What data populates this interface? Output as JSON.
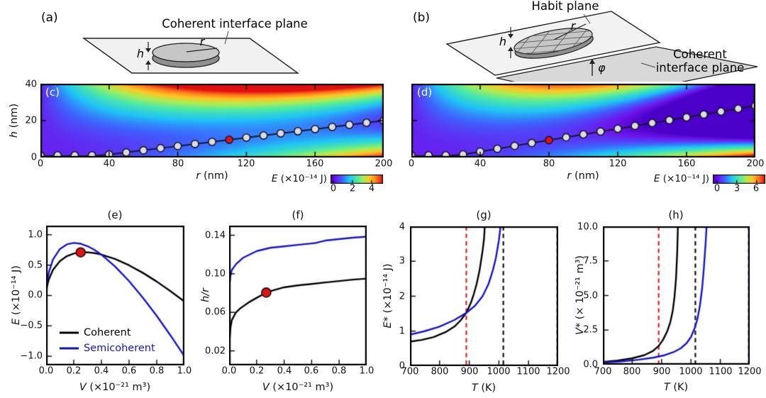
{
  "schematics": {
    "a": {
      "panel_label": "(a)",
      "plane_label": "Coherent interface plane",
      "h_label": "h",
      "r_label": "r"
    },
    "b": {
      "panel_label": "(b)",
      "habit_label": "Habit plane",
      "coherent_label_line1": "Coherent",
      "coherent_label_line2": "interface plane",
      "h_label": "h",
      "r_label": "r",
      "phi_label": "φ"
    }
  },
  "colormap": {
    "stops": [
      [
        0,
        "#4a00c8"
      ],
      [
        0.1,
        "#6d17ee"
      ],
      [
        0.22,
        "#3e62ff"
      ],
      [
        0.35,
        "#1fc4f5"
      ],
      [
        0.5,
        "#4ce9a6"
      ],
      [
        0.63,
        "#a8ee55"
      ],
      [
        0.76,
        "#ffc524"
      ],
      [
        0.88,
        "#ff7a1c"
      ],
      [
        1,
        "#e01010"
      ]
    ]
  },
  "marker_colors": {
    "path_fill": "#dcdcdc",
    "red_fill": "#e01212",
    "stroke": "#16162e"
  },
  "chart_data": [
    {
      "id": "c",
      "type": "heatmap",
      "panel_label": "(c)",
      "xlim": [
        0,
        200
      ],
      "ylim": [
        0,
        40
      ],
      "xlabel_symbol": "r",
      "xlabel_units": " (nm)",
      "ylabel_symbol": "h",
      "ylabel_units": " (nm)",
      "xticks": [
        {
          "v": 0,
          "label": "0"
        },
        {
          "v": 40,
          "label": "40"
        },
        {
          "v": 80,
          "label": "80"
        },
        {
          "v": 120,
          "label": "120"
        },
        {
          "v": 160,
          "label": "160"
        },
        {
          "v": 200,
          "label": "200"
        }
      ],
      "yticks": [
        {
          "v": 40,
          "label": "40"
        },
        {
          "v": 20,
          "label": "20"
        },
        {
          "v": 0,
          "label": "0"
        }
      ],
      "colorbar": {
        "label_symbol": "E",
        "label_units": " (×10⁻¹⁴ J)",
        "vmin": -0.3,
        "vmax": 5.2,
        "ticks": [
          {
            "v": 0,
            "label": "0"
          },
          {
            "v": 2,
            "label": "2"
          },
          {
            "v": 4,
            "label": "4"
          }
        ]
      },
      "energy_model": {
        "s": 0.000125,
        "a": 1.9e-05,
        "b": 3.8e-06,
        "off": 0.35,
        "formula": "E = s*r^2 + pi*a*r*h^2 - pi*b*r^2*h + off  (E in 1e-14 J; r,h in nm)"
      },
      "optimal_path": {
        "r": [
          0,
          10,
          20,
          30,
          40,
          50,
          60,
          70,
          80,
          90,
          100,
          110,
          120,
          130,
          140,
          150,
          160,
          170,
          180,
          190,
          200
        ],
        "h": [
          0,
          0,
          0,
          0.45,
          1.6,
          2.75,
          3.9,
          5.05,
          6.2,
          7.35,
          8.5,
          9.65,
          10.8,
          11.95,
          13.1,
          14.25,
          15.4,
          16.55,
          17.7,
          18.85,
          20
        ],
        "red_index": 11
      }
    },
    {
      "id": "d",
      "type": "heatmap",
      "panel_label": "(d)",
      "xlim": [
        0,
        200
      ],
      "ylim": [
        0,
        40
      ],
      "xlabel_symbol": "r",
      "xlabel_units": " (nm)",
      "ylabel_symbol": "",
      "ylabel_units": "",
      "xticks": [
        {
          "v": 0,
          "label": "0"
        },
        {
          "v": 40,
          "label": "40"
        },
        {
          "v": 80,
          "label": "80"
        },
        {
          "v": 120,
          "label": "120"
        },
        {
          "v": 160,
          "label": "160"
        },
        {
          "v": 200,
          "label": "200"
        }
      ],
      "yticks": [
        {
          "v": 40,
          "label": ""
        },
        {
          "v": 20,
          "label": ""
        },
        {
          "v": 0,
          "label": ""
        }
      ],
      "colorbar": {
        "label_symbol": "E",
        "label_units": " (×10⁻¹⁴ J)",
        "vmin": -0.6,
        "vmax": 7.3,
        "ticks": [
          {
            "v": 0,
            "label": "0"
          },
          {
            "v": 3,
            "label": "3"
          },
          {
            "v": 6,
            "label": "6"
          }
        ]
      },
      "energy_model": {
        "s": 0.0002,
        "a": 3e-05,
        "b": 8.4e-06,
        "off": 0.3,
        "formula": "E = s*r^2 + pi*a*r*h^2 - pi*b*r^2*h + off  (E in 1e-14 J; r,h in nm)"
      },
      "optimal_path": {
        "r": [
          0,
          10,
          20,
          30,
          40,
          50,
          60,
          70,
          80,
          90,
          100,
          110,
          120,
          130,
          140,
          150,
          160,
          170,
          180,
          190,
          200
        ],
        "h": [
          0,
          0,
          0.1,
          1.65,
          3.2,
          4.75,
          6.3,
          7.85,
          9.4,
          10.95,
          12.5,
          14.05,
          15.6,
          17.15,
          18.7,
          20.25,
          21.8,
          23.35,
          24.9,
          26.45,
          28
        ],
        "red_index": 8
      }
    },
    {
      "id": "e",
      "type": "line",
      "title": "(e)",
      "xlim": [
        0,
        1
      ],
      "ylim": [
        -1.15,
        1.15
      ],
      "xticks": [
        {
          "v": 0,
          "label": "0.0"
        },
        {
          "v": 0.2,
          "label": "0.2"
        },
        {
          "v": 0.4,
          "label": "0.4"
        },
        {
          "v": 0.6,
          "label": "0.6"
        },
        {
          "v": 0.8,
          "label": "0.8"
        },
        {
          "v": 1.0,
          "label": "1.0"
        }
      ],
      "yticks": [
        {
          "v": 1.0,
          "label": "1.0"
        },
        {
          "v": 0.5,
          "label": "0.5"
        },
        {
          "v": 0.0,
          "label": "0.0"
        },
        {
          "v": -0.5,
          "label": "−0.5"
        },
        {
          "v": -1.0,
          "label": "−1.0"
        }
      ],
      "xlabel_symbol": "V",
      "xlabel_units": " (×10⁻²¹ m³)",
      "ylabel_symbol": "E",
      "ylabel_units": " (×10⁻¹⁴ J)",
      "series": [
        {
          "name": "Coherent",
          "color": "#000000",
          "x": [
            0,
            0.002,
            0.005,
            0.01,
            0.02,
            0.05,
            0.1,
            0.15,
            0.2,
            0.25,
            0.3,
            0.35,
            0.4,
            0.5,
            0.6,
            0.7,
            0.8,
            0.9,
            1.0
          ],
          "y": [
            0,
            0.069,
            0.12,
            0.181,
            0.266,
            0.424,
            0.567,
            0.647,
            0.69,
            0.71,
            0.711,
            0.698,
            0.674,
            0.6,
            0.497,
            0.372,
            0.229,
            0.071,
            -0.1
          ]
        },
        {
          "name": "Semicoherent",
          "color": "#1414cc",
          "x": [
            0,
            0.002,
            0.005,
            0.01,
            0.02,
            0.05,
            0.1,
            0.15,
            0.2,
            0.25,
            0.3,
            0.35,
            0.4,
            0.5,
            0.6,
            0.7,
            0.8,
            0.9,
            1.0
          ],
          "y": [
            0,
            0.102,
            0.176,
            0.263,
            0.383,
            0.593,
            0.766,
            0.842,
            0.865,
            0.852,
            0.811,
            0.75,
            0.672,
            0.475,
            0.236,
            -0.037,
            -0.336,
            -0.659,
            -1.0
          ]
        }
      ],
      "red_point": {
        "x": 0.25,
        "y": 0.71
      }
    },
    {
      "id": "f",
      "type": "line",
      "title": "(f)",
      "xlim": [
        0,
        1
      ],
      "ylim": [
        0.005,
        0.15
      ],
      "xticks": [
        {
          "v": 0,
          "label": "0.0"
        },
        {
          "v": 0.2,
          "label": "0.2"
        },
        {
          "v": 0.4,
          "label": "0.4"
        },
        {
          "v": 0.6,
          "label": "0.6"
        },
        {
          "v": 0.8,
          "label": "0.8"
        },
        {
          "v": 1.0,
          "label": "1.0"
        }
      ],
      "yticks": [
        {
          "v": 0.14,
          "label": "0.14"
        },
        {
          "v": 0.1,
          "label": "0.10"
        },
        {
          "v": 0.06,
          "label": "0.06"
        },
        {
          "v": 0.02,
          "label": "0.02"
        }
      ],
      "xlabel_symbol": "V",
      "xlabel_units": " (×10⁻²¹ m³)",
      "ylabel_symbol": "h/r",
      "ylabel_units": "",
      "series": [
        {
          "name": "Coherent",
          "color": "#000000",
          "x": [
            0,
            0.004,
            0.01,
            0.02,
            0.05,
            0.08,
            0.1,
            0.15,
            0.2,
            0.25,
            0.3,
            0.4,
            0.5,
            0.6,
            0.7,
            0.8,
            0.9,
            1.0
          ],
          "y": [
            0.008,
            0.032,
            0.044,
            0.052,
            0.06,
            0.064,
            0.066,
            0.071,
            0.075,
            0.079,
            0.082,
            0.086,
            0.088,
            0.0895,
            0.091,
            0.0925,
            0.094,
            0.095
          ]
        },
        {
          "name": "Semicoherent",
          "color": "#1414cc",
          "x": [
            0,
            0.004,
            0.01,
            0.02,
            0.05,
            0.1,
            0.15,
            0.2,
            0.3,
            0.4,
            0.5,
            0.6,
            0.63,
            0.7,
            0.8,
            0.9,
            1.0
          ],
          "y": [
            0.068,
            0.09,
            0.098,
            0.104,
            0.11,
            0.1165,
            0.12,
            0.1235,
            0.127,
            0.1285,
            0.13,
            0.1315,
            0.132,
            0.1345,
            0.136,
            0.1375,
            0.1385
          ]
        }
      ],
      "red_point": {
        "x": 0.27,
        "y": 0.0805
      }
    },
    {
      "id": "g",
      "type": "line",
      "title": "(g)",
      "xlim": [
        700,
        1200
      ],
      "ylim": [
        0,
        4
      ],
      "xticks": [
        {
          "v": 700,
          "label": "700"
        },
        {
          "v": 800,
          "label": "800"
        },
        {
          "v": 900,
          "label": "900"
        },
        {
          "v": 1000,
          "label": "1000"
        },
        {
          "v": 1100,
          "label": "1100"
        },
        {
          "v": 1200,
          "label": "1200"
        }
      ],
      "yticks": [
        {
          "v": 4,
          "label": "4"
        },
        {
          "v": 3,
          "label": "3"
        },
        {
          "v": 2,
          "label": "2"
        },
        {
          "v": 1,
          "label": "1"
        },
        {
          "v": 0,
          "label": "0"
        }
      ],
      "xlabel_symbol": "T",
      "xlabel_units": " (K)",
      "ylabel_symbol": "E*",
      "ylabel_units": " (×10⁻¹⁴ J)",
      "series": [
        {
          "name": "Coherent",
          "color": "#000000",
          "x": [
            700,
            740,
            780,
            820,
            850,
            870,
            890,
            905,
            915,
            925,
            935,
            945,
            950,
            953
          ],
          "y": [
            0.7,
            0.75,
            0.83,
            0.97,
            1.13,
            1.3,
            1.52,
            1.8,
            2.05,
            2.35,
            2.75,
            3.3,
            3.65,
            4.1
          ]
        },
        {
          "name": "Semicoherent",
          "color": "#1414cc",
          "x": [
            700,
            750,
            800,
            850,
            890,
            920,
            945,
            965,
            980,
            990,
            1000,
            1007
          ],
          "y": [
            0.9,
            1.0,
            1.13,
            1.32,
            1.52,
            1.73,
            2.0,
            2.35,
            2.75,
            3.1,
            3.6,
            4.1
          ]
        }
      ],
      "vlines": [
        {
          "x": 890,
          "color": "#dd2222"
        },
        {
          "x": 1015,
          "color": "#111111"
        },
        {
          "x": 1197,
          "color": "#1414cc"
        }
      ]
    },
    {
      "id": "h",
      "type": "line",
      "title": "(h)",
      "xlim": [
        700,
        1200
      ],
      "ylim": [
        0,
        10
      ],
      "xticks": [
        {
          "v": 700,
          "label": "700"
        },
        {
          "v": 800,
          "label": "800"
        },
        {
          "v": 900,
          "label": "900"
        },
        {
          "v": 1000,
          "label": "1000"
        },
        {
          "v": 1100,
          "label": "1100"
        },
        {
          "v": 1200,
          "label": "1200"
        }
      ],
      "yticks": [
        {
          "v": 10,
          "label": "10.0"
        },
        {
          "v": 7.5,
          "label": "7.5"
        },
        {
          "v": 5,
          "label": "5.0"
        },
        {
          "v": 2.5,
          "label": "2.5"
        },
        {
          "v": 0,
          "label": "0.0"
        }
      ],
      "xlabel_symbol": "T",
      "xlabel_units": " (K)",
      "ylabel_symbol": "V*",
      "ylabel_units": " (× 10⁻²¹ m³)",
      "series": [
        {
          "name": "Coherent",
          "color": "#000000",
          "x": [
            700,
            750,
            800,
            840,
            870,
            890,
            905,
            920,
            930,
            938,
            944,
            949,
            953,
            956
          ],
          "y": [
            0.2,
            0.3,
            0.46,
            0.68,
            0.98,
            1.35,
            1.8,
            2.45,
            3.1,
            3.9,
            4.9,
            6.2,
            8.0,
            10.3
          ]
        },
        {
          "name": "Semicoherent",
          "color": "#1414cc",
          "x": [
            700,
            760,
            820,
            870,
            910,
            940,
            965,
            985,
            1000,
            1012,
            1022,
            1030,
            1038,
            1044,
            1050,
            1054
          ],
          "y": [
            0.15,
            0.23,
            0.35,
            0.5,
            0.68,
            0.9,
            1.18,
            1.55,
            2.0,
            2.6,
            3.3,
            4.2,
            5.5,
            7.0,
            8.8,
            10.3
          ]
        }
      ],
      "vlines": [
        {
          "x": 890,
          "color": "#dd2222"
        },
        {
          "x": 1015,
          "color": "#111111"
        },
        {
          "x": 1197,
          "color": "#1414cc"
        }
      ]
    }
  ]
}
